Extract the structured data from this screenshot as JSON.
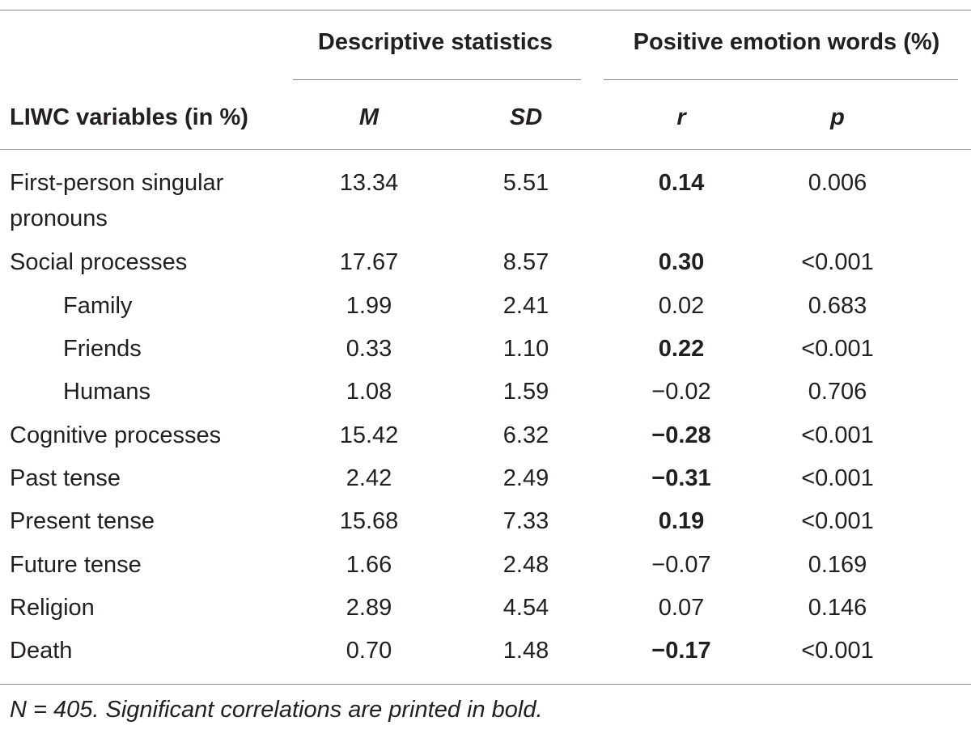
{
  "table": {
    "group_headers": {
      "descriptive": "Descriptive statistics",
      "positive": "Positive emotion words (%)"
    },
    "column_headers": {
      "variable": "LIWC variables (in %)",
      "m": "M",
      "sd": "SD",
      "r": "r",
      "p": "p"
    },
    "rows": [
      {
        "label": "First-person singular",
        "label2": "pronouns",
        "m": "13.34",
        "sd": "5.51",
        "r": "0.14",
        "p": "0.006",
        "sig": true,
        "indent": false
      },
      {
        "label": "Social processes",
        "m": "17.67",
        "sd": "8.57",
        "r": "0.30",
        "p": "<0.001",
        "sig": true,
        "indent": false
      },
      {
        "label": "Family",
        "m": "1.99",
        "sd": "2.41",
        "r": "0.02",
        "p": "0.683",
        "sig": false,
        "indent": true
      },
      {
        "label": "Friends",
        "m": "0.33",
        "sd": "1.10",
        "r": "0.22",
        "p": "<0.001",
        "sig": true,
        "indent": true
      },
      {
        "label": "Humans",
        "m": "1.08",
        "sd": "1.59",
        "r": "−0.02",
        "p": "0.706",
        "sig": false,
        "indent": true
      },
      {
        "label": "Cognitive processes",
        "m": "15.42",
        "sd": "6.32",
        "r": "−0.28",
        "p": "<0.001",
        "sig": true,
        "indent": false
      },
      {
        "label": "Past tense",
        "m": "2.42",
        "sd": "2.49",
        "r": "−0.31",
        "p": "<0.001",
        "sig": true,
        "indent": false
      },
      {
        "label": "Present tense",
        "m": "15.68",
        "sd": "7.33",
        "r": "0.19",
        "p": "<0.001",
        "sig": true,
        "indent": false
      },
      {
        "label": "Future tense",
        "m": "1.66",
        "sd": "2.48",
        "r": "−0.07",
        "p": "0.169",
        "sig": false,
        "indent": false
      },
      {
        "label": "Religion",
        "m": "2.89",
        "sd": "4.54",
        "r": "0.07",
        "p": "0.146",
        "sig": false,
        "indent": false
      },
      {
        "label": "Death",
        "m": "0.70",
        "sd": "1.48",
        "r": "−0.17",
        "p": "<0.001",
        "sig": true,
        "indent": false
      }
    ],
    "note": "N = 405. Significant correlations are printed in bold."
  }
}
